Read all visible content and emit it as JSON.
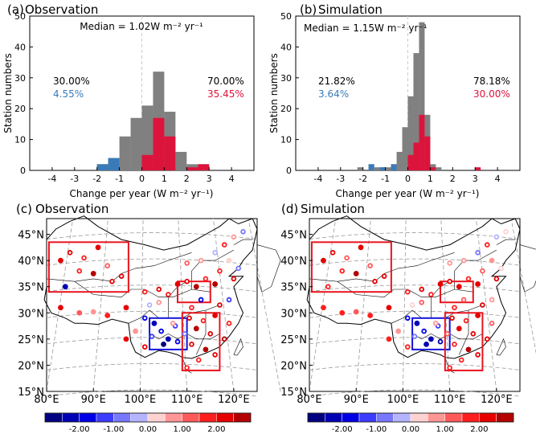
{
  "colors": {
    "grey": "#808080",
    "crimson": "#dc143c",
    "steelblue": "#3a7ab8",
    "box_red": "#e8141e",
    "box_blue": "#1414dc",
    "zero_line": "#cccccc"
  },
  "chart_data": [
    {
      "id": "a",
      "type": "bar",
      "panel_label": "(a)",
      "title": "Observation",
      "annotation": "Median = 1.02W m⁻² yr⁻¹",
      "xlabel": "Change per year (W m⁻² yr⁻¹)",
      "ylabel": "Station numbers",
      "xlim": [
        -5,
        5
      ],
      "ylim": [
        0,
        50
      ],
      "xticks": [
        -4,
        -3,
        -2,
        -1,
        0,
        1,
        2,
        3,
        4
      ],
      "yticks": [
        0,
        10,
        20,
        30,
        40,
        50
      ],
      "bin_width": 0.5,
      "bin_starts": [
        -2.0,
        -1.5,
        -1.0,
        -0.5,
        0.0,
        0.5,
        1.0,
        1.5,
        2.0,
        2.5
      ],
      "series": [
        {
          "values": [
            2,
            4,
            11,
            17,
            21,
            32,
            19,
            6,
            2,
            2
          ]
        },
        {
          "values": [
            2,
            4,
            0,
            0,
            0,
            0,
            0,
            0,
            0,
            0
          ]
        },
        {
          "values": [
            0,
            0,
            0,
            0,
            5,
            17,
            11,
            0,
            1,
            2
          ]
        }
      ],
      "pct_labels": {
        "neg_total": "30.00%",
        "neg_sig": "4.55%",
        "pos_total": "70.00%",
        "pos_sig": "35.45%"
      }
    },
    {
      "id": "b",
      "type": "bar",
      "panel_label": "(b)",
      "title": "Simulation",
      "annotation": "Median = 1.15W m⁻² yr⁻¹",
      "xlabel": "Change per year (W m⁻² yr⁻¹)",
      "ylabel": "Station numbers",
      "xlim": [
        -5,
        5
      ],
      "ylim": [
        0,
        50
      ],
      "xticks": [
        -4,
        -3,
        -2,
        -1,
        0,
        1,
        2,
        3,
        4
      ],
      "yticks": [
        0,
        10,
        20,
        30,
        40,
        50
      ],
      "bin_width": 0.25,
      "bin_starts": [
        -2.25,
        -1.75,
        -1.5,
        -1.25,
        -1.0,
        -0.75,
        -0.5,
        -0.25,
        0.0,
        0.25,
        0.5,
        0.75,
        1.0,
        1.25,
        3.0
      ],
      "series": [
        {
          "values": [
            1,
            2,
            1,
            1,
            1,
            2,
            6,
            14,
            24,
            38,
            48,
            18,
            2,
            1,
            0
          ]
        },
        {
          "values": [
            0,
            2,
            0,
            1,
            0,
            2,
            0,
            0,
            0,
            0,
            0,
            0,
            0,
            0,
            0
          ]
        },
        {
          "values": [
            0,
            0,
            0,
            0,
            0,
            0,
            0,
            0,
            5,
            9,
            18,
            11,
            1,
            0,
            1
          ]
        }
      ],
      "pct_labels": {
        "neg_total": "21.82%",
        "neg_sig": "3.64%",
        "pos_total": "78.18%",
        "pos_sig": "30.00%"
      }
    },
    {
      "id": "c",
      "type": "scatter",
      "panel_label": "(c)",
      "title": "Observation",
      "xlim": [
        80,
        125
      ],
      "ylim": [
        15,
        48
      ],
      "xticks": [
        "80°E",
        "90°E",
        "100°E",
        "110°E",
        "120°E"
      ],
      "yticks": [
        "15°N",
        "20°N",
        "25°N",
        "30°N",
        "35°N",
        "40°N",
        "45°N"
      ],
      "ytick_values": [
        15,
        20,
        25,
        30,
        35,
        40,
        45
      ],
      "xtick_values": [
        80,
        90,
        100,
        110,
        120
      ],
      "regions": [
        {
          "color": "red",
          "lon": [
            80.5,
            97.5
          ],
          "lat": [
            34,
            43.5
          ]
        },
        {
          "color": "blue",
          "lon": [
            102,
            110
          ],
          "lat": [
            23,
            29
          ]
        },
        {
          "color": "red",
          "lon": [
            108,
            115
          ],
          "lat": [
            32,
            36
          ]
        },
        {
          "color": "red",
          "lon": [
            109,
            117
          ],
          "lat": [
            19,
            30
          ]
        }
      ],
      "points": [
        [
          83,
          40,
          2.2,
          0
        ],
        [
          85,
          41.5,
          2.4,
          1
        ],
        [
          88,
          40.5,
          1.6,
          1
        ],
        [
          91,
          42.5,
          2.1,
          0
        ],
        [
          87,
          38,
          1.9,
          1
        ],
        [
          90,
          37.5,
          2.6,
          0
        ],
        [
          93,
          39,
          1.4,
          1
        ],
        [
          84,
          35,
          -2.2,
          0
        ],
        [
          94,
          36,
          2.3,
          1
        ],
        [
          96,
          37,
          2.1,
          1
        ],
        [
          83,
          31,
          2.0,
          0
        ],
        [
          87,
          30,
          1.3,
          0
        ],
        [
          90,
          30.2,
          0.8,
          0
        ],
        [
          93,
          29.5,
          1.5,
          0
        ],
        [
          97,
          31,
          2.2,
          0
        ],
        [
          101,
          34,
          1.9,
          1
        ],
        [
          104,
          34.5,
          2.3,
          1
        ],
        [
          102,
          31.5,
          -0.5,
          1
        ],
        [
          104,
          32,
          0.9,
          1
        ],
        [
          106,
          33.5,
          1.8,
          1
        ],
        [
          108,
          35.5,
          2.4,
          0
        ],
        [
          110,
          36,
          2.2,
          1
        ],
        [
          112,
          35,
          2.5,
          0
        ],
        [
          114,
          36.5,
          1.7,
          1
        ],
        [
          116,
          35.5,
          2.6,
          0
        ],
        [
          110,
          39.5,
          1.2,
          1
        ],
        [
          113,
          40,
          0.6,
          1
        ],
        [
          116,
          41.5,
          -0.4,
          1
        ],
        [
          118,
          43,
          1.9,
          1
        ],
        [
          120,
          44.5,
          0.5,
          1
        ],
        [
          122,
          45.5,
          -0.8,
          1
        ],
        [
          119,
          40,
          0.4,
          0
        ],
        [
          121,
          38.5,
          -0.7,
          1
        ],
        [
          117,
          38,
          1.5,
          1
        ],
        [
          120,
          36.5,
          2.2,
          1
        ],
        [
          101,
          29,
          -1.8,
          1
        ],
        [
          103,
          28,
          -2.4,
          0
        ],
        [
          104.5,
          26.5,
          -2.0,
          1
        ],
        [
          106,
          25,
          -2.3,
          0
        ],
        [
          107.5,
          27.5,
          -1.5,
          1
        ],
        [
          102.5,
          25.5,
          -1.2,
          1
        ],
        [
          105,
          24,
          -2.6,
          0
        ],
        [
          108,
          24.5,
          -1.9,
          1
        ],
        [
          109.5,
          26,
          -1.0,
          1
        ],
        [
          101,
          23.5,
          2.0,
          1
        ],
        [
          110.5,
          29,
          2.3,
          1
        ],
        [
          112,
          27,
          2.5,
          0
        ],
        [
          113.5,
          28.5,
          1.8,
          1
        ],
        [
          115,
          26,
          2.4,
          1
        ],
        [
          111,
          24,
          2.1,
          1
        ],
        [
          114,
          23,
          2.6,
          0
        ],
        [
          112.5,
          21,
          1.7,
          1
        ],
        [
          116,
          22,
          2.2,
          1
        ],
        [
          110,
          19.5,
          1.9,
          1
        ],
        [
          118,
          25,
          2.5,
          1
        ],
        [
          116,
          29.5,
          2.3,
          0
        ],
        [
          119,
          28,
          1.6,
          1
        ],
        [
          117,
          31.5,
          2.2,
          1
        ],
        [
          119,
          32.5,
          -1.2,
          1
        ],
        [
          113,
          32.5,
          -1.6,
          1
        ],
        [
          111,
          31,
          1.5,
          1
        ],
        [
          107,
          28,
          0.7,
          1
        ],
        [
          99,
          26.5,
          0.5,
          0
        ],
        [
          97,
          25,
          2.1,
          0
        ]
      ]
    },
    {
      "id": "d",
      "type": "scatter",
      "panel_label": "(d)",
      "title": "Simulation",
      "xlim": [
        80,
        125
      ],
      "ylim": [
        15,
        48
      ],
      "xticks": [
        "80°E",
        "90°E",
        "100°E",
        "110°E",
        "120°E"
      ],
      "yticks": [
        "15°N",
        "20°N",
        "25°N",
        "30°N",
        "35°N",
        "40°N",
        "45°N"
      ],
      "ytick_values": [
        15,
        20,
        25,
        30,
        35,
        40,
        45
      ],
      "xtick_values": [
        80,
        90,
        100,
        110,
        120
      ],
      "regions": [
        {
          "color": "red",
          "lon": [
            80.5,
            97.5
          ],
          "lat": [
            34,
            43.5
          ]
        },
        {
          "color": "blue",
          "lon": [
            102,
            110
          ],
          "lat": [
            23,
            29
          ]
        },
        {
          "color": "red",
          "lon": [
            108,
            115
          ],
          "lat": [
            32,
            36
          ]
        },
        {
          "color": "red",
          "lon": [
            109,
            117
          ],
          "lat": [
            19,
            30
          ]
        }
      ],
      "points": [
        [
          83,
          40,
          2.0,
          0
        ],
        [
          85,
          41.5,
          2.2,
          1
        ],
        [
          88,
          40.5,
          1.4,
          1
        ],
        [
          91,
          42.5,
          2.3,
          0
        ],
        [
          87,
          38,
          1.7,
          1
        ],
        [
          90,
          37.5,
          2.5,
          0
        ],
        [
          93,
          39,
          1.2,
          1
        ],
        [
          84,
          35,
          1.9,
          1
        ],
        [
          94,
          36,
          2.1,
          1
        ],
        [
          96,
          37,
          2.4,
          1
        ],
        [
          83,
          31,
          1.8,
          0
        ],
        [
          87,
          30,
          1.5,
          0
        ],
        [
          90,
          30.2,
          1.0,
          0
        ],
        [
          93,
          29.5,
          1.7,
          0
        ],
        [
          97,
          31,
          2.0,
          0
        ],
        [
          101,
          34,
          1.7,
          1
        ],
        [
          104,
          34.5,
          2.1,
          1
        ],
        [
          102,
          31.5,
          0.4,
          1
        ],
        [
          104,
          32,
          1.1,
          1
        ],
        [
          106,
          33.5,
          1.6,
          1
        ],
        [
          108,
          35.5,
          2.2,
          0
        ],
        [
          110,
          36,
          2.0,
          1
        ],
        [
          112,
          35,
          2.3,
          0
        ],
        [
          114,
          36.5,
          1.5,
          1
        ],
        [
          116,
          35.5,
          2.4,
          0
        ],
        [
          110,
          39.5,
          0.9,
          1
        ],
        [
          113,
          40,
          0.5,
          1
        ],
        [
          116,
          41.5,
          -0.6,
          1
        ],
        [
          118,
          43,
          1.6,
          1
        ],
        [
          120,
          44.5,
          -0.5,
          1
        ],
        [
          122,
          45.5,
          0.3,
          1
        ],
        [
          119,
          40,
          0.7,
          0
        ],
        [
          121,
          38.5,
          0.4,
          1
        ],
        [
          117,
          38,
          1.3,
          1
        ],
        [
          120,
          36.5,
          2.0,
          1
        ],
        [
          101,
          29,
          -1.6,
          1
        ],
        [
          103,
          28,
          -2.2,
          0
        ],
        [
          104.5,
          26.5,
          -1.8,
          1
        ],
        [
          106,
          25,
          -2.5,
          0
        ],
        [
          107.5,
          27.5,
          -1.3,
          1
        ],
        [
          102.5,
          25.5,
          -1.0,
          1
        ],
        [
          105,
          24,
          -2.4,
          0
        ],
        [
          108,
          24.5,
          -2.1,
          1
        ],
        [
          109.5,
          26,
          1.2,
          1
        ],
        [
          101,
          23.5,
          1.8,
          1
        ],
        [
          110.5,
          29,
          2.1,
          1
        ],
        [
          112,
          27,
          2.4,
          0
        ],
        [
          113.5,
          28.5,
          1.6,
          1
        ],
        [
          115,
          26,
          2.2,
          1
        ],
        [
          111,
          24,
          1.9,
          1
        ],
        [
          114,
          23,
          2.5,
          0
        ],
        [
          112.5,
          21,
          1.5,
          1
        ],
        [
          116,
          22,
          2.0,
          1
        ],
        [
          110,
          19.5,
          1.7,
          1
        ],
        [
          118,
          25,
          2.3,
          1
        ],
        [
          116,
          29.5,
          2.1,
          0
        ],
        [
          119,
          28,
          1.4,
          1
        ],
        [
          117,
          31.5,
          2.0,
          1
        ],
        [
          119,
          32.5,
          0.8,
          1
        ],
        [
          113,
          32.5,
          1.3,
          1
        ],
        [
          111,
          31,
          1.7,
          1
        ],
        [
          107,
          28,
          0.9,
          1
        ],
        [
          99,
          26.5,
          0.7,
          0
        ],
        [
          97,
          25,
          1.9,
          0
        ]
      ]
    }
  ],
  "colorbar": {
    "ticks": [
      "-2.00",
      "-1.00",
      "0.00",
      "1.00",
      "2.00"
    ],
    "tick_values": [
      -2,
      -1,
      0,
      1,
      2
    ],
    "vmin": -3,
    "vmax": 3,
    "colors": [
      "#000080",
      "#0000b4",
      "#0000e6",
      "#3c3cff",
      "#7878ff",
      "#b4b4ff",
      "#ffd2d2",
      "#ff9696",
      "#ff5a5a",
      "#ff1e1e",
      "#e60000",
      "#b40000"
    ]
  }
}
